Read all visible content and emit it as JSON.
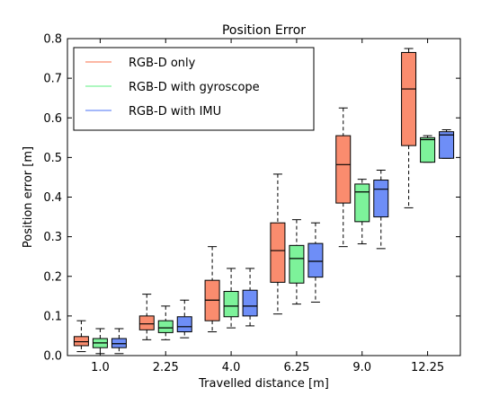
{
  "chart_data": {
    "type": "box",
    "title": "Position Error",
    "xlabel": "Travelled distance [m]",
    "ylabel": "Position error [m]",
    "ylim": [
      0,
      0.8
    ],
    "yticks": [
      "0.0",
      "0.1",
      "0.2",
      "0.3",
      "0.4",
      "0.5",
      "0.6",
      "0.7",
      "0.8"
    ],
    "categories": [
      "1.0",
      "2.25",
      "4.0",
      "6.25",
      "9.0",
      "12.25"
    ],
    "legend_position": "top-left",
    "series": [
      {
        "name": "RGB-D only",
        "color": "#fa8c6e",
        "boxes": [
          {
            "min": 0.01,
            "q1": 0.025,
            "median": 0.035,
            "q3": 0.048,
            "max": 0.088
          },
          {
            "min": 0.04,
            "q1": 0.065,
            "median": 0.08,
            "q3": 0.1,
            "max": 0.155
          },
          {
            "min": 0.06,
            "q1": 0.088,
            "median": 0.14,
            "q3": 0.19,
            "max": 0.275
          },
          {
            "min": 0.105,
            "q1": 0.185,
            "median": 0.265,
            "q3": 0.335,
            "max": 0.458
          },
          {
            "min": 0.275,
            "q1": 0.385,
            "median": 0.482,
            "q3": 0.555,
            "max": 0.625
          },
          {
            "min": 0.373,
            "q1": 0.53,
            "median": 0.673,
            "q3": 0.765,
            "max": 0.775
          }
        ]
      },
      {
        "name": "RGB-D with gyroscope",
        "color": "#7df29a",
        "boxes": [
          {
            "min": 0.005,
            "q1": 0.02,
            "median": 0.032,
            "q3": 0.043,
            "max": 0.068
          },
          {
            "min": 0.04,
            "q1": 0.058,
            "median": 0.07,
            "q3": 0.088,
            "max": 0.125
          },
          {
            "min": 0.07,
            "q1": 0.098,
            "median": 0.125,
            "q3": 0.162,
            "max": 0.22
          },
          {
            "min": 0.13,
            "q1": 0.183,
            "median": 0.245,
            "q3": 0.278,
            "max": 0.343
          },
          {
            "min": 0.282,
            "q1": 0.338,
            "median": 0.413,
            "q3": 0.433,
            "max": 0.445
          },
          {
            "min": 0.488,
            "q1": 0.488,
            "median": 0.545,
            "q3": 0.55,
            "max": 0.555
          }
        ]
      },
      {
        "name": "RGB-D with IMU",
        "color": "#6e8ef7",
        "boxes": [
          {
            "min": 0.005,
            "q1": 0.02,
            "median": 0.03,
            "q3": 0.043,
            "max": 0.068
          },
          {
            "min": 0.045,
            "q1": 0.06,
            "median": 0.073,
            "q3": 0.098,
            "max": 0.14
          },
          {
            "min": 0.075,
            "q1": 0.1,
            "median": 0.125,
            "q3": 0.165,
            "max": 0.22
          },
          {
            "min": 0.135,
            "q1": 0.198,
            "median": 0.238,
            "q3": 0.283,
            "max": 0.335
          },
          {
            "min": 0.27,
            "q1": 0.35,
            "median": 0.42,
            "q3": 0.443,
            "max": 0.468
          },
          {
            "min": 0.498,
            "q1": 0.498,
            "median": 0.557,
            "q3": 0.565,
            "max": 0.57
          }
        ]
      }
    ]
  }
}
